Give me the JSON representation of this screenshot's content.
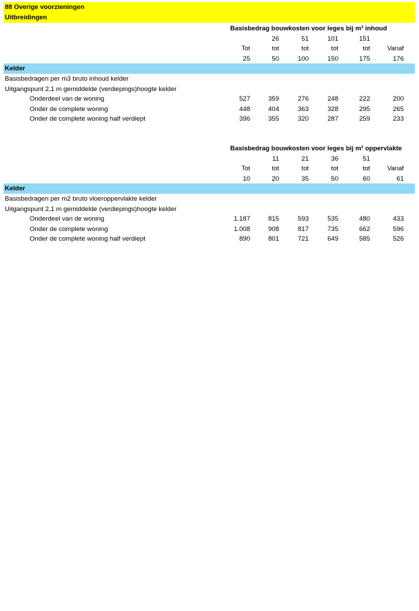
{
  "header": {
    "title": "88 Overige voorzieningen",
    "subtitle": "Uitbreidingen"
  },
  "sections": [
    {
      "title": "Basisbedrag bouwkosten voor leges bij m³ inhoud",
      "head_rows": [
        [
          null,
          "26",
          "51",
          "101",
          "151",
          null
        ],
        [
          "Tot",
          "tot",
          "tot",
          "tot",
          "tot",
          "Vanaf"
        ],
        [
          "25",
          "50",
          "100",
          "150",
          "175",
          "176"
        ]
      ],
      "band": "Kelder",
      "notes": [
        "Basisbedragen per m3 bruto inhoud kelder",
        "Uitgangspunt 2,1 m gemiddelde (verdiepings)hoogte kelder"
      ],
      "rows": [
        {
          "label": "Onderdeel van de woning",
          "values": [
            "527",
            "359",
            "276",
            "248",
            "222",
            "200"
          ]
        },
        {
          "label": "Onder de complete woning",
          "values": [
            "448",
            "404",
            "363",
            "328",
            "295",
            "265"
          ]
        },
        {
          "label": "Onder de complete woning half verdiept",
          "values": [
            "396",
            "355",
            "320",
            "287",
            "259",
            "233"
          ]
        }
      ]
    },
    {
      "title": "Basisbedrag bouwkosten voor leges bij m² oppervlakte",
      "head_rows": [
        [
          null,
          "11",
          "21",
          "36",
          "51",
          null
        ],
        [
          "Tot",
          "tot",
          "tot",
          "tot",
          "tot",
          "Vanaf"
        ],
        [
          "10",
          "20",
          "35",
          "50",
          "60",
          "61"
        ]
      ],
      "band": "Kelder",
      "notes": [
        "Basisbedragen per m2 bruto vloeroppervlakte kelder",
        "Uitgangspunt 2,1 m gemiddelde (verdiepings)hoogte kelder"
      ],
      "rows": [
        {
          "label": "Onderdeel van de woning",
          "values": [
            "1.187",
            "815",
            "593",
            "535",
            "480",
            "433"
          ]
        },
        {
          "label": "Onder de complete woning",
          "values": [
            "1.008",
            "908",
            "817",
            "735",
            "662",
            "596"
          ]
        },
        {
          "label": "Onder de complete woning half verdiept",
          "values": [
            "890",
            "801",
            "721",
            "649",
            "585",
            "526"
          ]
        }
      ]
    }
  ]
}
